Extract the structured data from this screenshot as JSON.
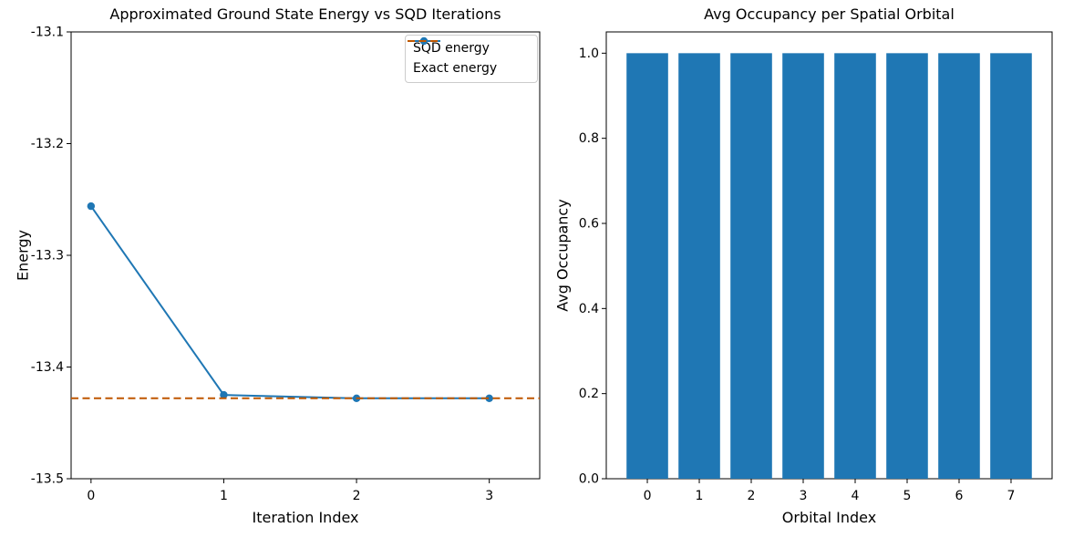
{
  "figure": {
    "background": "#ffffff"
  },
  "chart_data": [
    {
      "type": "line",
      "title": "Approximated Ground State Energy vs SQD Iterations",
      "xlabel": "Iteration Index",
      "ylabel": "Energy",
      "x": [
        0,
        1,
        2,
        3
      ],
      "xtick_labels": [
        "0",
        "1",
        "2",
        "3"
      ],
      "ytick_values": [
        -13.1,
        -13.2,
        -13.3,
        -13.4,
        -13.5
      ],
      "ytick_labels": [
        "-13.1",
        "-13.2",
        "-13.3",
        "-13.4",
        "-13.5"
      ],
      "xlim": [
        -0.15,
        3.38
      ],
      "ylim": [
        -13.5,
        -13.1
      ],
      "grid": false,
      "legend_position": "upper right",
      "series": [
        {
          "name": "SQD energy",
          "style": "line-marker",
          "color": "#1f77b4",
          "values": [
            -13.256,
            -13.425,
            -13.428,
            -13.428
          ]
        },
        {
          "name": "Exact energy",
          "style": "hline-dashed",
          "color": "#BF5700",
          "value": -13.428
        }
      ]
    },
    {
      "type": "bar",
      "title": "Avg Occupancy per Spatial Orbital",
      "xlabel": "Orbital Index",
      "ylabel": "Avg Occupancy",
      "categories": [
        "0",
        "1",
        "2",
        "3",
        "4",
        "5",
        "6",
        "7"
      ],
      "values": [
        1.0,
        1.0,
        1.0,
        1.0,
        1.0,
        1.0,
        1.0,
        1.0
      ],
      "ytick_values": [
        0.0,
        0.2,
        0.4,
        0.6,
        0.8,
        1.0
      ],
      "ytick_labels": [
        "0.0",
        "0.2",
        "0.4",
        "0.6",
        "0.8",
        "1.0"
      ],
      "xlim": [
        -0.79,
        7.79
      ],
      "ylim": [
        0,
        1.05
      ],
      "grid": false,
      "bar_width": 0.8,
      "bar_color": "#1f77b4"
    }
  ]
}
